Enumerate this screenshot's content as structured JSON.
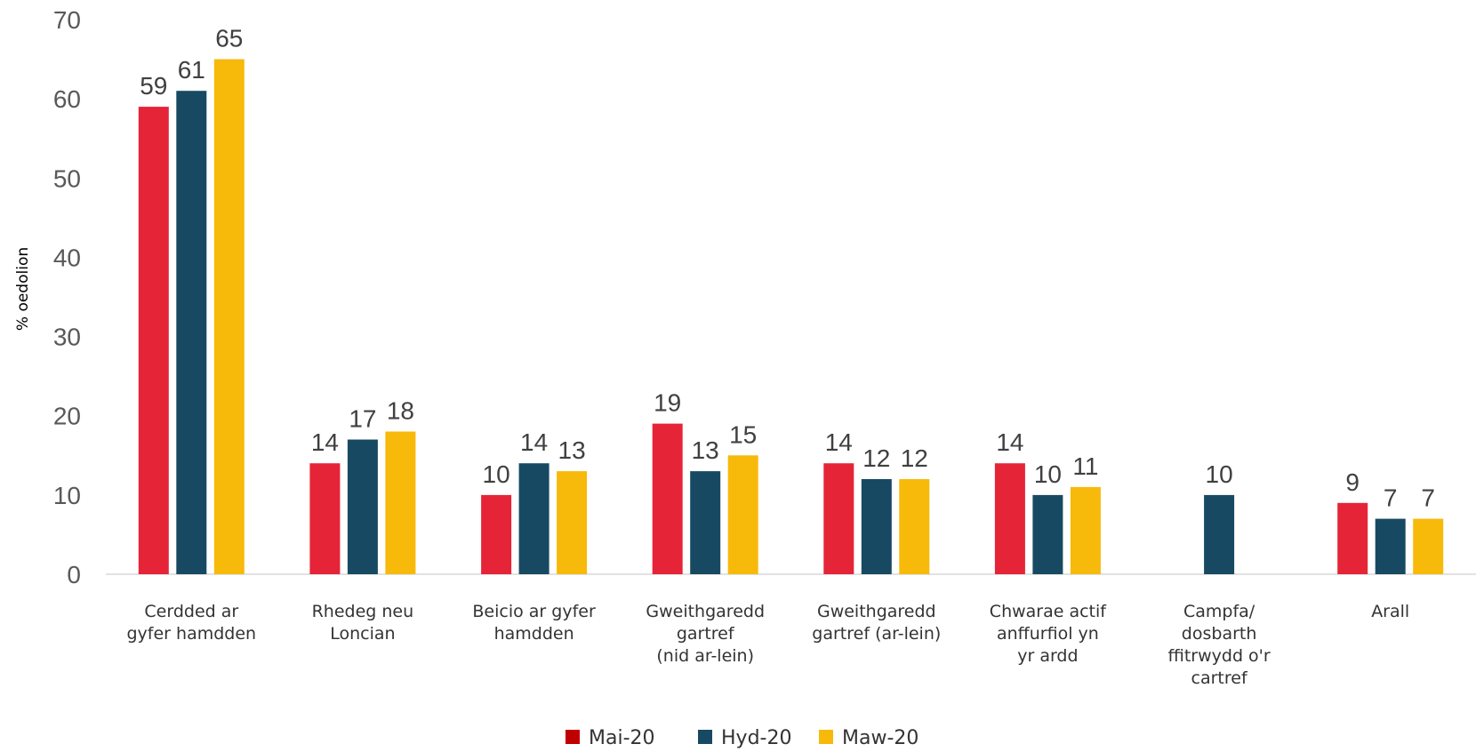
{
  "chart_data": {
    "type": "bar",
    "ylabel": "% oedolion",
    "ylim": [
      0,
      70
    ],
    "yticks": [
      0,
      10,
      20,
      30,
      40,
      50,
      60,
      70
    ],
    "grid": false,
    "legend_position": "bottom-center",
    "categories": [
      [
        "Cerdded ar",
        "gyfer hamdden"
      ],
      [
        "Rhedeg neu",
        "Loncian"
      ],
      [
        "Beicio ar gyfer",
        "hamdden"
      ],
      [
        "Gweithgaredd",
        "gartref",
        "(nid ar-lein)"
      ],
      [
        "Gweithgaredd",
        "gartref (ar-lein)"
      ],
      [
        "Chwarae actif",
        "anffurfiol yn",
        "yr ardd"
      ],
      [
        "Campfa/",
        "dosbarth",
        "ffitrwydd o'r",
        "cartref"
      ],
      [
        "Arall"
      ]
    ],
    "series": [
      {
        "name": "Mai-20",
        "color": "#E52438",
        "legend_color": "#C00000",
        "values": [
          59,
          14,
          10,
          19,
          14,
          14,
          null,
          9
        ]
      },
      {
        "name": "Hyd-20",
        "color": "#174A62",
        "legend_color": "#174A62",
        "values": [
          61,
          17,
          14,
          13,
          12,
          10,
          10,
          7
        ]
      },
      {
        "name": "Maw-20",
        "color": "#F7B90A",
        "legend_color": "#F7B90A",
        "values": [
          65,
          18,
          13,
          15,
          12,
          11,
          null,
          7
        ]
      }
    ]
  }
}
